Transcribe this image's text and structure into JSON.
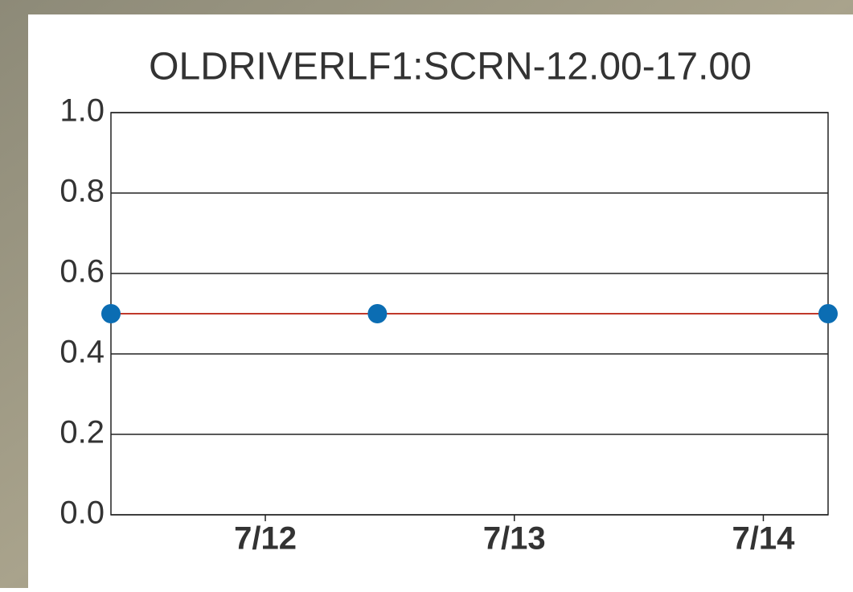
{
  "chart_data": {
    "type": "line",
    "title": "OLDRIVERLF1:SCRN-12.00-17.00",
    "x": [
      11.38,
      12.45,
      14.26
    ],
    "values": [
      0.5,
      0.5,
      0.5
    ],
    "line_color": "#c0392b",
    "marker_color": "#0b6db3",
    "xlim": [
      11.38,
      14.26
    ],
    "xticks": [
      {
        "value": 12,
        "label": "7/12"
      },
      {
        "value": 13,
        "label": "7/13"
      },
      {
        "value": 14,
        "label": "7/14"
      }
    ],
    "ylim": [
      0,
      1
    ],
    "yticks": [
      {
        "value": 0,
        "label": "0.0"
      },
      0.2,
      0.4,
      0.6,
      0.8,
      {
        "value": 1,
        "label": "1.0"
      }
    ],
    "grid": true
  }
}
